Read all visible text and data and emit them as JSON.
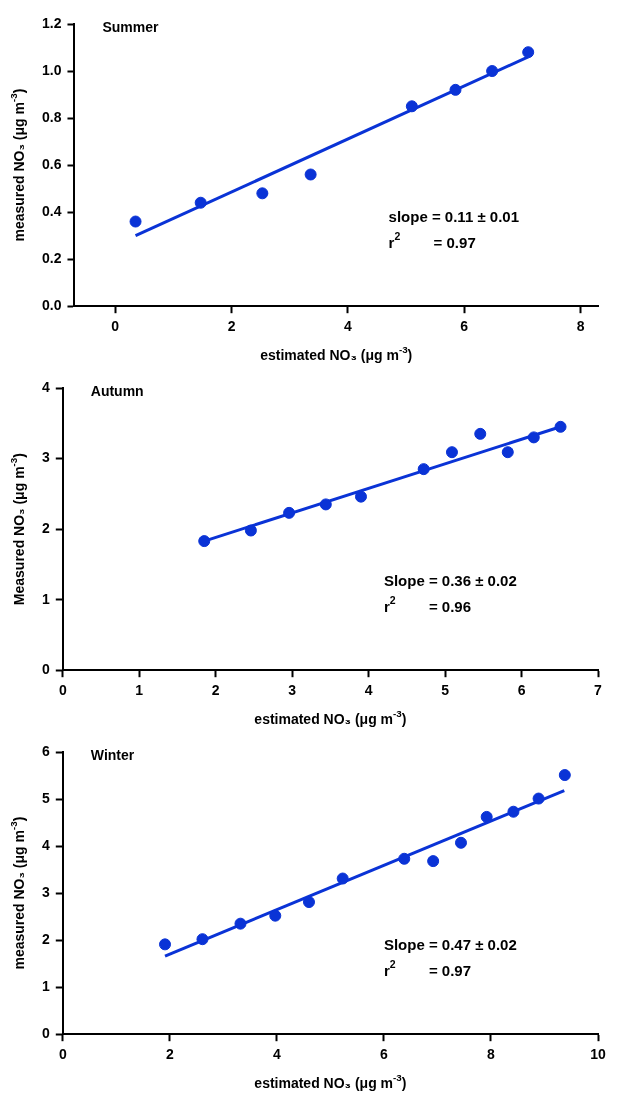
{
  "chart_data": [
    {
      "type": "scatter",
      "title": "Summer",
      "xlabel": "estimated NO₃ (μg m$^{-3}$)",
      "ylabel": "measured NO₃ (μg m$^{-3}$)",
      "xlim": [
        -0.7,
        8.3
      ],
      "ylim": [
        0,
        1.2
      ],
      "xticks": [
        0,
        2,
        4,
        6,
        8
      ],
      "yticks": [
        {
          "value": 0,
          "label": "0.0"
        },
        {
          "value": 0.2,
          "label": "0.2"
        },
        {
          "value": 0.4,
          "label": "0.4"
        },
        {
          "value": 0.6,
          "label": "0.6"
        },
        {
          "value": 0.8,
          "label": "0.8"
        },
        {
          "value": 1,
          "label": "1.0"
        },
        {
          "value": 1.2,
          "label": "1.2"
        }
      ],
      "grid": false,
      "legend": false,
      "annotations": [
        "slope = 0.11 ± 0.01",
        "r$^{2}$        = 0.97"
      ],
      "series": [
        {
          "marker": "circle",
          "color": "#0a33d6",
          "x": [
            0.35,
            1.47,
            2.53,
            3.36,
            5.1,
            5.85,
            6.48,
            7.1
          ],
          "values": [
            0.36,
            0.44,
            0.48,
            0.56,
            0.85,
            0.92,
            1.0,
            1.08
          ]
        },
        {
          "type": "line",
          "marker": "none",
          "color": "#0a33d6",
          "x": [
            0.35,
            7.1
          ],
          "values": [
            0.3,
            1.06
          ]
        }
      ]
    },
    {
      "type": "scatter",
      "title": "Autumn",
      "xlabel": "estimated NO₃ (μg m$^{-3}$)",
      "ylabel": "Measured NO₃ (μg m$^{-3}$)",
      "xlim": [
        0,
        7
      ],
      "ylim": [
        0,
        4
      ],
      "xticks": [
        0,
        1,
        2,
        3,
        4,
        5,
        6,
        7
      ],
      "yticks": [
        0,
        1,
        2,
        3,
        4
      ],
      "grid": false,
      "legend": false,
      "annotations": [
        "Slope = 0.36 ± 0.02",
        "r$^{2}$        = 0.96"
      ],
      "series": [
        {
          "marker": "circle",
          "color": "#0a33d6",
          "x": [
            1.85,
            2.46,
            2.96,
            3.44,
            3.9,
            4.72,
            5.09,
            5.46,
            5.82,
            6.16,
            6.51
          ],
          "values": [
            1.83,
            1.98,
            2.23,
            2.35,
            2.46,
            2.85,
            3.09,
            3.35,
            3.09,
            3.3,
            3.45
          ]
        },
        {
          "type": "line",
          "marker": "none",
          "color": "#0a33d6",
          "x": [
            1.85,
            6.51
          ],
          "values": [
            1.83,
            3.45
          ]
        }
      ]
    },
    {
      "type": "scatter",
      "title": "Winter",
      "xlabel": "estimated NO₃ (μg m$^{-3}$)",
      "ylabel": "measured NO₃ (μg m$^{-3}$)",
      "xlim": [
        0,
        10
      ],
      "ylim": [
        0,
        6
      ],
      "xticks": [
        0,
        2,
        4,
        6,
        8,
        10
      ],
      "yticks": [
        0,
        1,
        2,
        3,
        4,
        5,
        6
      ],
      "grid": false,
      "legend": false,
      "annotations": [
        "Slope = 0.47 ± 0.02",
        "r$^{2}$        = 0.97"
      ],
      "series": [
        {
          "marker": "circle",
          "color": "#0a33d6",
          "x": [
            1.91,
            2.61,
            3.32,
            3.97,
            4.6,
            5.23,
            6.38,
            6.92,
            7.44,
            7.92,
            8.42,
            8.89,
            9.38
          ],
          "values": [
            1.91,
            2.02,
            2.35,
            2.52,
            2.81,
            3.31,
            3.73,
            3.68,
            4.07,
            4.62,
            4.73,
            5.01,
            5.51
          ]
        },
        {
          "type": "line",
          "marker": "none",
          "color": "#0a33d6",
          "x": [
            1.91,
            9.37
          ],
          "values": [
            1.66,
            5.18
          ]
        }
      ]
    }
  ]
}
